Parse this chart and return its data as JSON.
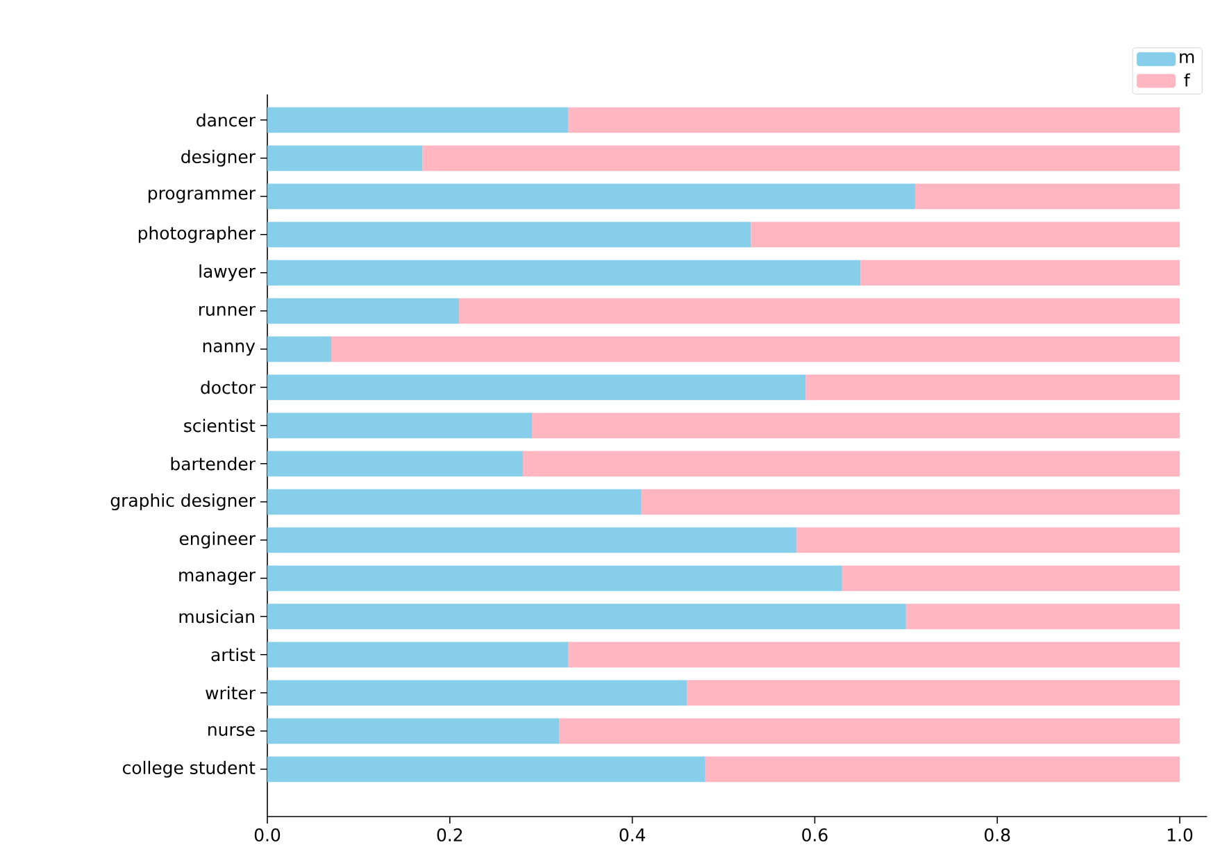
{
  "chart_data": {
    "type": "bar",
    "orientation": "horizontal",
    "stacked": true,
    "categories": [
      "dancer",
      "designer",
      "programmer",
      "photographer",
      "lawyer",
      "runner",
      "nanny",
      "doctor",
      "scientist",
      "bartender",
      "graphic designer",
      "engineer",
      "manager",
      "musician",
      "artist",
      "writer",
      "nurse",
      "college student"
    ],
    "series": [
      {
        "name": "m",
        "color": "#87ceeb",
        "values": [
          0.33,
          0.17,
          0.71,
          0.53,
          0.65,
          0.21,
          0.07,
          0.59,
          0.29,
          0.28,
          0.41,
          0.58,
          0.63,
          0.7,
          0.33,
          0.46,
          0.32,
          0.48
        ]
      },
      {
        "name": "f",
        "color": "#ffb6c1",
        "values": [
          0.67,
          0.83,
          0.29,
          0.47,
          0.35,
          0.79,
          0.93,
          0.41,
          0.71,
          0.72,
          0.59,
          0.42,
          0.37,
          0.3,
          0.67,
          0.54,
          0.68,
          0.52
        ]
      }
    ],
    "xlim": [
      0,
      1.03
    ],
    "xticks": [
      {
        "value": 0,
        "label": "0.0"
      },
      {
        "value": 0.2,
        "label": "0.2"
      },
      {
        "value": 0.4,
        "label": "0.4"
      },
      {
        "value": 0.6,
        "label": "0.6"
      },
      {
        "value": 0.8,
        "label": "0.8"
      },
      {
        "value": 1.0,
        "label": "1.0"
      }
    ],
    "legend": "top right"
  }
}
